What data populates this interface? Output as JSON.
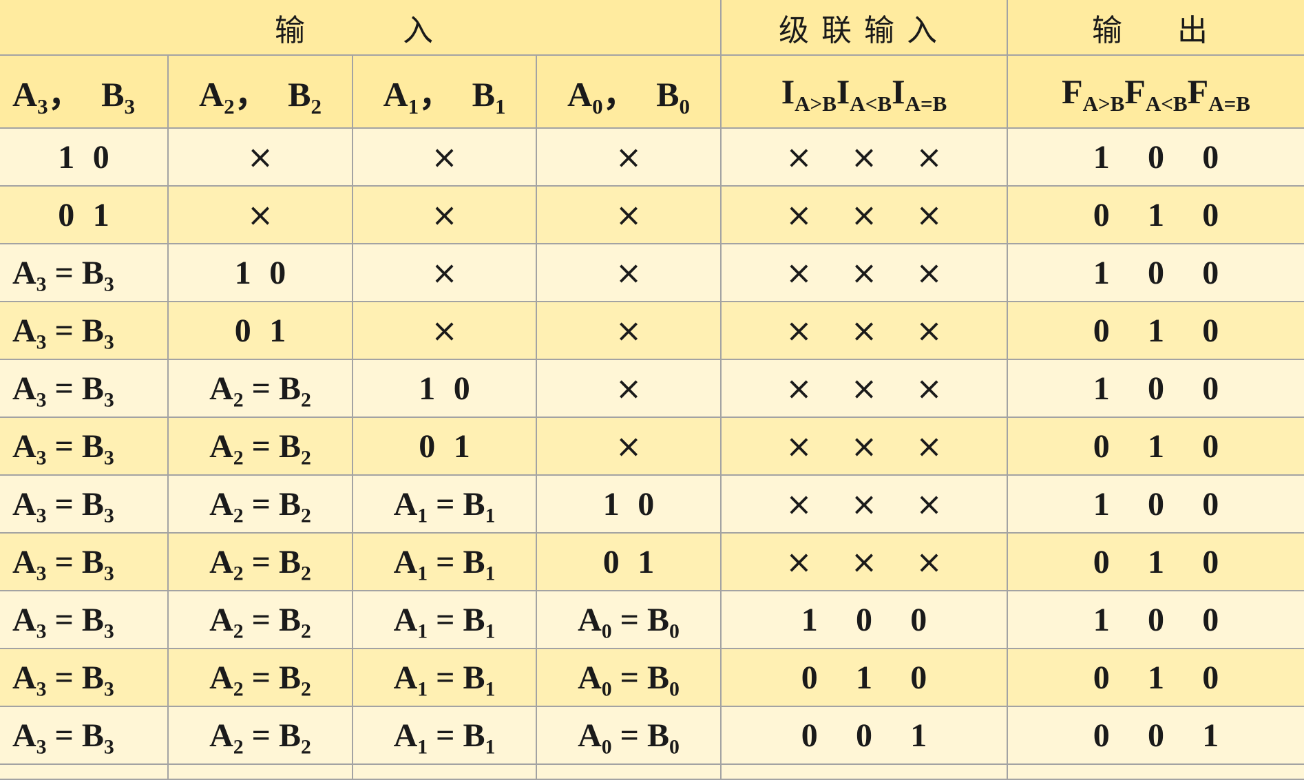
{
  "group_headers": [
    {
      "label": "输　　入",
      "span": 4
    },
    {
      "label": "级联输入",
      "span": 1
    },
    {
      "label": "输　出",
      "span": 1
    }
  ],
  "column_headers": [
    [
      [
        "A",
        "3"
      ],
      [
        "，",
        ""
      ],
      [
        "B",
        "3"
      ]
    ],
    [
      [
        "A",
        "2"
      ],
      [
        "，",
        ""
      ],
      [
        "B",
        "2"
      ]
    ],
    [
      [
        "A",
        "1"
      ],
      [
        "，",
        ""
      ],
      [
        "B",
        "1"
      ]
    ],
    [
      [
        "A",
        "0"
      ],
      [
        "，",
        ""
      ],
      [
        "B",
        "0"
      ]
    ],
    [
      [
        "I",
        "A>B"
      ],
      [
        "I",
        "A<B"
      ],
      [
        "I",
        "A=B"
      ]
    ],
    [
      [
        "F",
        "A>B"
      ],
      [
        "F",
        "A<B"
      ],
      [
        "F",
        "A=B"
      ]
    ]
  ],
  "rows": [
    [
      "1 0",
      "×",
      "×",
      "×",
      "× × ×",
      "1 0 0"
    ],
    [
      "0 1",
      "×",
      "×",
      "×",
      "× × ×",
      "0 1 0"
    ],
    [
      "A3=B3",
      "1 0",
      "×",
      "×",
      "× × ×",
      "1 0 0"
    ],
    [
      "A3=B3",
      "0 1",
      "×",
      "×",
      "× × ×",
      "0 1 0"
    ],
    [
      "A3=B3",
      "A2=B2",
      "1 0",
      "×",
      "× × ×",
      "1 0 0"
    ],
    [
      "A3=B3",
      "A2=B2",
      "0 1",
      "×",
      "× × ×",
      "0 1 0"
    ],
    [
      "A3=B3",
      "A2=B2",
      "A1=B1",
      "1 0",
      "× × ×",
      "1 0 0"
    ],
    [
      "A3=B3",
      "A2=B2",
      "A1=B1",
      "0 1",
      "× × ×",
      "0 1 0"
    ],
    [
      "A3=B3",
      "A2=B2",
      "A1=B1",
      "A0=B0",
      "1 0 0",
      "1 0 0"
    ],
    [
      "A3=B3",
      "A2=B2",
      "A1=B1",
      "A0=B0",
      "0 1 0",
      "0 1 0"
    ],
    [
      "A3=B3",
      "A2=B2",
      "A1=B1",
      "A0=B0",
      "0 0 1",
      "0 0 1"
    ]
  ],
  "colors": {
    "header_bg": "#ffeb9f",
    "row_light": "#fff6d6",
    "row_dark": "#fff0b3",
    "grid": "#a3a3a3",
    "text": "#1a1a1a"
  }
}
